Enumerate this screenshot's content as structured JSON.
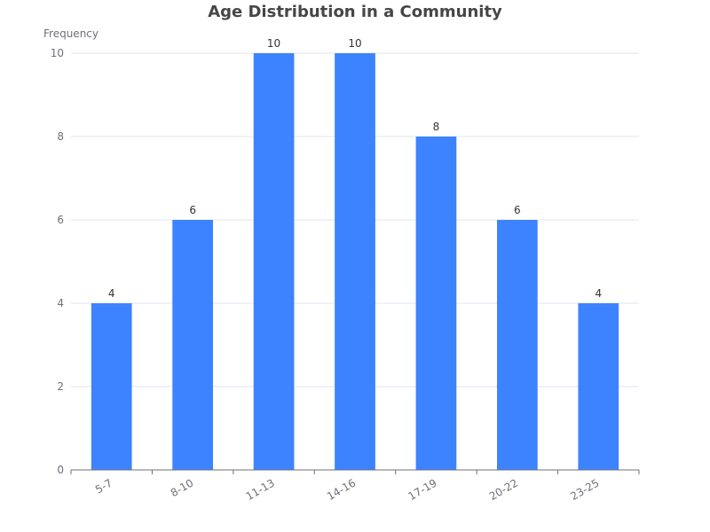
{
  "chart_data": {
    "type": "bar",
    "title": "Age Distribution in a Community",
    "xlabel": "",
    "ylabel": "Frequency",
    "categories": [
      "5-7",
      "8-10",
      "11-13",
      "14-16",
      "17-19",
      "20-22",
      "23-25"
    ],
    "values": [
      4,
      6,
      10,
      10,
      8,
      6,
      4
    ],
    "ylim": [
      0,
      10
    ],
    "yticks": [
      0,
      2,
      4,
      6,
      8,
      10
    ],
    "grid": true,
    "data_labels": true,
    "bar_color": "#3d83ff",
    "x_tick_rotation_deg": -30
  }
}
